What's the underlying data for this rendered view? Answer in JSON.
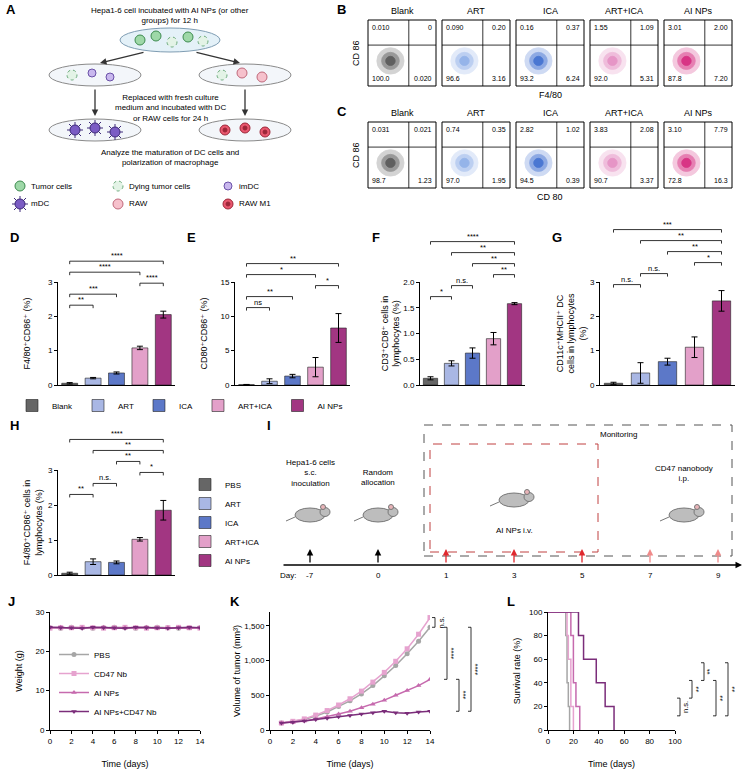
{
  "figure": {
    "A": {
      "panel": "A",
      "steps": [
        "Hepa1-6 cell incubated with AI NPs (or other groups) for 12 h",
        "Replaced with fresh culture medium and incubated with DC or RAW cells for 24 h",
        "Analyze the maturation of DC cells and polarization of macrophage"
      ],
      "key_items": [
        "Tumor cells",
        "Dying tumor cells",
        "imDC",
        "mDC",
        "RAW",
        "RAW M1"
      ]
    },
    "flow": [
      {
        "panel": "B",
        "x_label": "F4/80",
        "y_label": "CD 86",
        "plots": [
          {
            "title": "Blank",
            "color": "#555555",
            "quadrants": {
              "top_left": "0.010",
              "top_right": "0",
              "bottom_left": "100.0",
              "bottom_right": "0.020"
            }
          },
          {
            "title": "ART",
            "color": "#8fb0e8",
            "quadrants": {
              "top_left": "0.090",
              "top_right": "0.20",
              "bottom_left": "96.6",
              "bottom_right": "3.16"
            }
          },
          {
            "title": "ICA",
            "color": "#3f6fd0",
            "quadrants": {
              "top_left": "0.16",
              "top_right": "0.37",
              "bottom_left": "93.2",
              "bottom_right": "6.24"
            }
          },
          {
            "title": "ART+ICA",
            "color": "#e58fc3",
            "quadrants": {
              "top_left": "1.55",
              "top_right": "1.09",
              "bottom_left": "92.0",
              "bottom_right": "5.31"
            }
          },
          {
            "title": "AI NPs",
            "color": "#d6287e",
            "quadrants": {
              "top_left": "3.01",
              "top_right": "2.00",
              "bottom_left": "87.8",
              "bottom_right": "7.20"
            }
          }
        ]
      },
      {
        "panel": "C",
        "x_label": "CD 80",
        "y_label": "CD 86",
        "plots": [
          {
            "title": "Blank",
            "color": "#555555",
            "quadrants": {
              "top_left": "0.031",
              "top_right": "0.021",
              "bottom_left": "98.7",
              "bottom_right": "1.23"
            }
          },
          {
            "title": "ART",
            "color": "#8fb0e8",
            "quadrants": {
              "top_left": "0.74",
              "top_right": "0.35",
              "bottom_left": "97.0",
              "bottom_right": "1.95"
            }
          },
          {
            "title": "ICA",
            "color": "#3f6fd0",
            "quadrants": {
              "top_left": "2.82",
              "top_right": "1.02",
              "bottom_left": "94.5",
              "bottom_right": "0.39"
            }
          },
          {
            "title": "ART+ICA",
            "color": "#e58fc3",
            "quadrants": {
              "top_left": "3.83",
              "top_right": "2.08",
              "bottom_left": "90.7",
              "bottom_right": "3.37"
            }
          },
          {
            "title": "AI NPs",
            "color": "#d6287e",
            "quadrants": {
              "top_left": "3.10",
              "top_right": "7.79",
              "bottom_left": "72.8",
              "bottom_right": "16.3"
            }
          }
        ]
      }
    ],
    "I": {
      "panel": "I",
      "day_label": "Day:",
      "days": [
        -7,
        0,
        1,
        3,
        5,
        7,
        9
      ],
      "inoculation": "Hepa1-6 cells s.c. inoculation",
      "allocation": "Random allocation",
      "monitoring": "Monitoring",
      "treatment": "AI NPs i.v.",
      "nanobody": "CD47 nanobody i.p."
    }
  },
  "chart_data": [
    {
      "panel": "D",
      "type": "bar",
      "categories": [
        "Blank",
        "ART",
        "ICA",
        "ART+ICA",
        "AI NPs"
      ],
      "values": [
        0.05,
        0.2,
        0.35,
        1.08,
        2.05
      ],
      "errors": [
        0.02,
        0.02,
        0.03,
        0.05,
        0.1
      ],
      "colors": [
        "#666666",
        "#a9b7e4",
        "#5c78c8",
        "#e3a0c9",
        "#a23682"
      ],
      "y_label": "F4/80⁺CD86⁺ (%)",
      "ylim": [
        0,
        3
      ],
      "yticks": [
        0,
        1,
        2,
        3
      ],
      "tick_labels": "y",
      "legend": "bottom",
      "significance": [
        [
          "Blank",
          "ART",
          "**"
        ],
        [
          "Blank",
          "ICA",
          "***"
        ],
        [
          "ART+ICA",
          "AI NPs",
          "****"
        ],
        [
          "Blank",
          "ART+ICA",
          "****"
        ],
        [
          "Blank",
          "AI NPs",
          "****"
        ]
      ]
    },
    {
      "panel": "E",
      "type": "bar",
      "categories": [
        "Blank",
        "ART",
        "ICA",
        "ART+ICA",
        "AI NPs"
      ],
      "values": [
        0.05,
        0.55,
        1.3,
        2.6,
        8.3
      ],
      "errors": [
        0.03,
        0.35,
        0.25,
        1.4,
        2.1
      ],
      "colors": [
        "#666666",
        "#a9b7e4",
        "#5c78c8",
        "#e3a0c9",
        "#a23682"
      ],
      "y_label": "CD80⁺CD86⁺ (%)",
      "ylim": [
        0,
        15
      ],
      "yticks": [
        0,
        5,
        10,
        15
      ],
      "tick_labels": "y",
      "significance": [
        [
          "Blank",
          "ART",
          "ns"
        ],
        [
          "Blank",
          "ICA",
          "**"
        ],
        [
          "ART+ICA",
          "AI NPs",
          "*"
        ],
        [
          "Blank",
          "ART+ICA",
          "*"
        ],
        [
          "Blank",
          "AI NPs",
          "**"
        ]
      ]
    },
    {
      "panel": "F",
      "type": "bar",
      "categories": [
        "PBS",
        "ART",
        "ICA",
        "ART+ICA",
        "AI NPs"
      ],
      "values": [
        0.13,
        0.42,
        0.62,
        0.9,
        1.58
      ],
      "errors": [
        0.03,
        0.05,
        0.1,
        0.12,
        0.02
      ],
      "colors": [
        "#666666",
        "#a9b7e4",
        "#5c78c8",
        "#e3a0c9",
        "#a23682"
      ],
      "y_label": "CD3⁺CD8⁺ cells in lymphocytes (%)",
      "ylim": [
        0,
        2
      ],
      "yticks": [
        {
          "value": 0,
          "label": "0.0"
        },
        0.5,
        {
          "value": 1,
          "label": "1.0"
        },
        1.5,
        {
          "value": 2,
          "label": "2.0"
        }
      ],
      "tick_labels": "y",
      "significance": [
        [
          "PBS",
          "ART",
          "*"
        ],
        [
          "ART",
          "ICA",
          "n.s."
        ],
        [
          "ART+ICA",
          "AI NPs",
          "**"
        ],
        [
          "ICA",
          "AI NPs",
          "**"
        ],
        [
          "ART",
          "AI NPs",
          "**"
        ],
        [
          "PBS",
          "AI NPs",
          "****"
        ]
      ]
    },
    {
      "panel": "G",
      "type": "bar",
      "categories": [
        "PBS",
        "ART",
        "ICA",
        "ART+ICA",
        "AI NPs"
      ],
      "values": [
        0.05,
        0.35,
        0.68,
        1.1,
        2.45
      ],
      "errors": [
        0.03,
        0.3,
        0.1,
        0.3,
        0.3
      ],
      "colors": [
        "#666666",
        "#a9b7e4",
        "#5c78c8",
        "#e3a0c9",
        "#a23682"
      ],
      "y_label": "CD11c⁺MHCII⁺ DC cells in lymphocytes (%)",
      "ylim": [
        0,
        3
      ],
      "yticks": [
        0,
        1,
        2,
        3
      ],
      "tick_labels": "y",
      "significance": [
        [
          "PBS",
          "ART",
          "n.s."
        ],
        [
          "ART",
          "ICA",
          "n.s."
        ],
        [
          "ART+ICA",
          "AI NPs",
          "*"
        ],
        [
          "ICA",
          "AI NPs",
          "**"
        ],
        [
          "ART",
          "AI NPs",
          "**"
        ],
        [
          "PBS",
          "AI NPs",
          "***"
        ]
      ]
    },
    {
      "panel": "H",
      "type": "bar",
      "categories": [
        "PBS",
        "ART",
        "ICA",
        "ART+ICA",
        "AI NPs"
      ],
      "values": [
        0.05,
        0.38,
        0.36,
        1.02,
        1.85
      ],
      "errors": [
        0.03,
        0.08,
        0.04,
        0.05,
        0.28
      ],
      "colors": [
        "#666666",
        "#a9b7e4",
        "#5c78c8",
        "#e3a0c9",
        "#a23682"
      ],
      "y_label": "F4/80⁺CD86⁺ cells in lymphocytes (%)",
      "ylim": [
        0,
        3
      ],
      "yticks": [
        0,
        1,
        2,
        3
      ],
      "tick_labels": "y",
      "legend": "right",
      "significance": [
        [
          "PBS",
          "ART",
          "**"
        ],
        [
          "ART",
          "ICA",
          "n.s."
        ],
        [
          "ART+ICA",
          "AI NPs",
          "*"
        ],
        [
          "ICA",
          "ART+ICA",
          "**"
        ],
        [
          "ART",
          "AI NPs",
          "**"
        ],
        [
          "PBS",
          "AI NPs",
          "****"
        ]
      ]
    },
    {
      "panel": "J",
      "type": "line",
      "x": [
        0,
        1,
        2,
        3,
        4,
        5,
        6,
        7,
        8,
        9,
        10,
        11,
        12,
        13,
        14
      ],
      "x_label": "Time (days)",
      "y_label": "Weight (g)",
      "xlim": [
        0,
        14
      ],
      "xticks": [
        0,
        2,
        4,
        6,
        8,
        10,
        12,
        14
      ],
      "ylim": [
        0,
        30
      ],
      "yticks": [
        0,
        10,
        20,
        30
      ],
      "legend": "lower left",
      "series": [
        {
          "name": "PBS",
          "color": "#a6a6a6",
          "marker": "circle",
          "values": [
            26,
            25.9,
            26.1,
            26,
            25.9,
            26,
            26.1,
            26,
            25.9,
            26,
            26.1,
            26,
            25.9,
            26,
            26
          ]
        },
        {
          "name": "CD47 Nb",
          "color": "#e6a3cf",
          "marker": "square",
          "values": [
            25.9,
            26,
            26,
            26.1,
            26,
            25.9,
            26,
            26.1,
            26,
            25.9,
            26,
            26,
            26.1,
            26,
            25.9
          ]
        },
        {
          "name": "AI NPs",
          "color": "#c66aae",
          "marker": "triangle-up",
          "values": [
            26,
            26.1,
            25.9,
            26,
            26,
            26.1,
            25.9,
            26,
            26,
            26.1,
            25.9,
            26,
            26,
            25.9,
            26
          ]
        },
        {
          "name": "AI NPs+CD47 Nb",
          "color": "#7b2d7a",
          "marker": "triangle-down",
          "values": [
            26.1,
            26,
            26,
            25.9,
            26.1,
            26,
            26,
            25.9,
            26.1,
            26,
            26,
            25.9,
            26,
            26.1,
            26
          ]
        }
      ]
    },
    {
      "panel": "K",
      "type": "line",
      "x": [
        1,
        2,
        3,
        4,
        5,
        6,
        7,
        8,
        9,
        10,
        11,
        12,
        13,
        14
      ],
      "x_label": "Time (days)",
      "y_label": "Volume of tumor (mm³)",
      "xlim": [
        0,
        14
      ],
      "xticks": [
        0,
        2,
        4,
        6,
        8,
        10,
        12,
        14
      ],
      "ylim": [
        0,
        1700
      ],
      "yticks": [
        0,
        500,
        {
          "value": 1000,
          "label": "1,000"
        },
        {
          "value": 1500,
          "label": "1,500"
        }
      ],
      "series": [
        {
          "name": "PBS",
          "color": "#a6a6a6",
          "marker": "circle",
          "values": [
            100,
            120,
            150,
            200,
            260,
            340,
            420,
            520,
            640,
            780,
            930,
            1100,
            1280,
            1480
          ]
        },
        {
          "name": "CD47 Nb",
          "color": "#e6a3cf",
          "marker": "square",
          "values": [
            100,
            125,
            160,
            215,
            280,
            360,
            450,
            560,
            690,
            830,
            990,
            1170,
            1380,
            1620
          ]
        },
        {
          "name": "AI NPs",
          "color": "#c66aae",
          "marker": "triangle-up",
          "values": [
            100,
            110,
            130,
            160,
            190,
            230,
            270,
            320,
            370,
            430,
            500,
            570,
            640,
            730
          ]
        },
        {
          "name": "AI NPs+CD47 Nb",
          "color": "#7b2d7a",
          "marker": "triangle-down",
          "values": [
            100,
            110,
            130,
            150,
            170,
            190,
            210,
            230,
            250,
            270,
            250,
            240,
            260,
            270
          ]
        }
      ],
      "significance": [
        [
          "PBS",
          "CD47 Nb",
          "n.s."
        ],
        [
          "PBS",
          "AI NPs",
          "****"
        ],
        [
          "AI NPs",
          "AI NPs+CD47 Nb",
          "***"
        ],
        [
          "PBS",
          "AI NPs+CD47 Nb",
          "****"
        ]
      ]
    },
    {
      "panel": "L",
      "type": "line",
      "line_style": "step",
      "x_label": "Time (days)",
      "y_label": "Survival rate (%)",
      "xlim": [
        0,
        100
      ],
      "xticks": [
        0,
        20,
        40,
        60,
        80,
        100
      ],
      "ylim": [
        0,
        100
      ],
      "yticks": [
        0,
        20,
        40,
        60,
        80,
        100
      ],
      "series": [
        {
          "name": "PBS",
          "color": "#a6a6a6",
          "x": [
            0,
            14,
            15,
            16,
            17
          ],
          "values": [
            100,
            80,
            40,
            20,
            0
          ]
        },
        {
          "name": "CD47 Nb",
          "color": "#e6a3cf",
          "x": [
            0,
            15,
            16,
            18,
            20
          ],
          "values": [
            100,
            80,
            60,
            20,
            0
          ]
        },
        {
          "name": "AI NPs",
          "color": "#c66aae",
          "x": [
            0,
            18,
            20,
            22,
            25
          ],
          "values": [
            100,
            80,
            40,
            20,
            0
          ]
        },
        {
          "name": "AI NPs+CD47 Nb",
          "color": "#7b2d7a",
          "x": [
            0,
            24,
            28,
            38,
            45,
            52
          ],
          "values": [
            100,
            80,
            60,
            40,
            20,
            0
          ]
        }
      ],
      "significance": [
        [
          "PBS",
          "CD47 Nb",
          "n.s."
        ],
        [
          "CD47 Nb",
          "AI NPs",
          "**"
        ],
        [
          "AI NPs",
          "AI NPs+CD47 Nb",
          "**"
        ],
        [
          "PBS",
          "AI NPs",
          "**"
        ],
        [
          "PBS",
          "AI NPs+CD47 Nb",
          "**"
        ]
      ]
    }
  ]
}
